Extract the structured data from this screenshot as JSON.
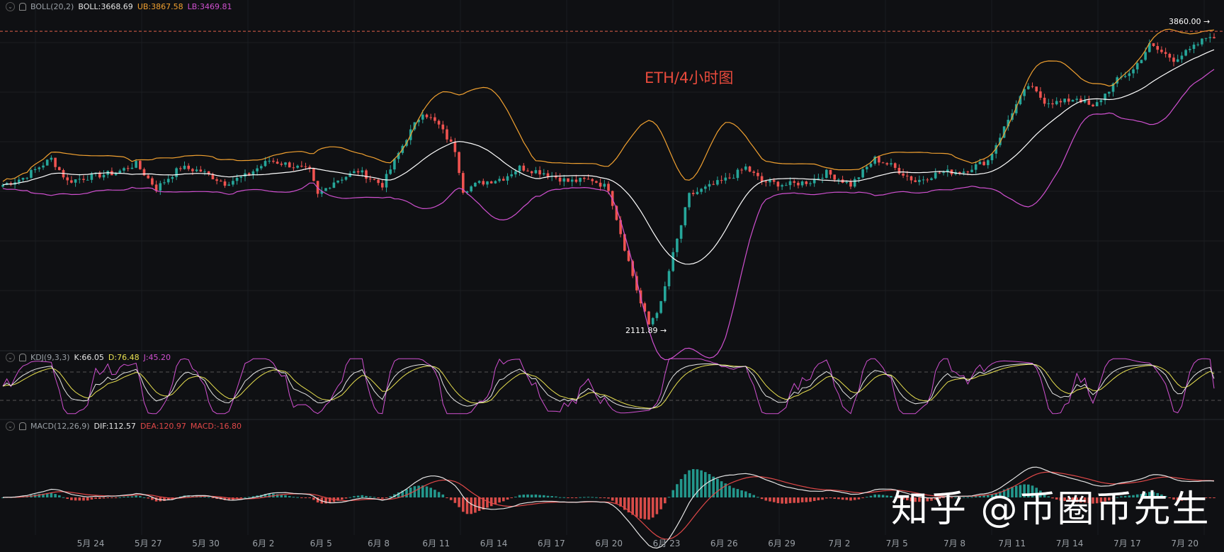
{
  "chart_data": {
    "type": "candlestick",
    "title": "ETH/4小时图",
    "x_ticks": [
      "5月 24",
      "5月 27",
      "5月 30",
      "6月 2",
      "6月 5",
      "6月 8",
      "6月 11",
      "6月 14",
      "6月 17",
      "6月 20",
      "6月 23",
      "6月 26",
      "6月 29",
      "7月 2",
      "7月 5",
      "7月 8",
      "7月 11",
      "7月 14",
      "7月 17",
      "7月 20"
    ],
    "price_range": [
      2050,
      3950
    ],
    "reference_price": 3860.0,
    "high_marker": "3860.00 →",
    "low_marker": "2111.89 →",
    "low_value": 2111.89,
    "boll": {
      "label": "BOLL(20,2)",
      "mid": "BOLL:3668.69",
      "ub": "UB:3867.58",
      "lb": "LB:3469.81",
      "mid_value": 3668.69,
      "ub_value": 3867.58,
      "lb_value": 3469.81
    },
    "kdj": {
      "label": "KDJ(9,3,3)",
      "k": "K:66.05",
      "d": "D:76.48",
      "j": "J:45.20",
      "k_value": 66.05,
      "d_value": 76.48,
      "j_value": 45.2,
      "levels": [
        20,
        80
      ]
    },
    "macd": {
      "label": "MACD(12,26,9)",
      "dif": "DIF:112.57",
      "dea": "DEA:120.97",
      "macd": "MACD:-16.80",
      "dif_value": 112.57,
      "dea_value": 120.97,
      "macd_value": -16.8
    },
    "price_anchors": [
      [
        0,
        2980
      ],
      [
        5,
        3020
      ],
      [
        12,
        3130
      ],
      [
        16,
        3000
      ],
      [
        22,
        3030
      ],
      [
        28,
        3050
      ],
      [
        33,
        3100
      ],
      [
        38,
        2960
      ],
      [
        44,
        3080
      ],
      [
        49,
        3060
      ],
      [
        55,
        2990
      ],
      [
        60,
        3030
      ],
      [
        66,
        3120
      ],
      [
        70,
        3100
      ],
      [
        76,
        3060
      ],
      [
        78,
        2920
      ],
      [
        82,
        3000
      ],
      [
        88,
        3060
      ],
      [
        94,
        2980
      ],
      [
        100,
        3250
      ],
      [
        104,
        3400
      ],
      [
        108,
        3320
      ],
      [
        112,
        3180
      ],
      [
        114,
        2950
      ],
      [
        118,
        2990
      ],
      [
        124,
        3020
      ],
      [
        128,
        3080
      ],
      [
        134,
        3050
      ],
      [
        140,
        3000
      ],
      [
        146,
        3010
      ],
      [
        150,
        2960
      ],
      [
        154,
        2620
      ],
      [
        158,
        2300
      ],
      [
        160,
        2180
      ],
      [
        163,
        2300
      ],
      [
        166,
        2580
      ],
      [
        170,
        2920
      ],
      [
        176,
        2980
      ],
      [
        180,
        3020
      ],
      [
        184,
        3080
      ],
      [
        188,
        3000
      ],
      [
        194,
        2980
      ],
      [
        200,
        3000
      ],
      [
        204,
        3050
      ],
      [
        210,
        2980
      ],
      [
        216,
        3130
      ],
      [
        220,
        3090
      ],
      [
        226,
        3000
      ],
      [
        232,
        3050
      ],
      [
        238,
        3060
      ],
      [
        244,
        3120
      ],
      [
        250,
        3400
      ],
      [
        254,
        3550
      ],
      [
        258,
        3460
      ],
      [
        262,
        3450
      ],
      [
        266,
        3480
      ],
      [
        270,
        3420
      ],
      [
        276,
        3580
      ],
      [
        280,
        3640
      ],
      [
        284,
        3780
      ],
      [
        290,
        3700
      ],
      [
        294,
        3750
      ],
      [
        300,
        3860
      ]
    ],
    "colors": {
      "up": "#26a69a",
      "down": "#ef5350",
      "mid": "#ffffff",
      "ub": "#f0a030",
      "lb": "#d050d0",
      "k": "#e6e6e6",
      "d": "#e8e050",
      "j": "#d050d0",
      "dif": "#e6e6e6",
      "dea": "#e04848",
      "background": "#0f1013",
      "reference_line": "#e0604a"
    }
  },
  "watermark": "知乎 @币圈币先生"
}
